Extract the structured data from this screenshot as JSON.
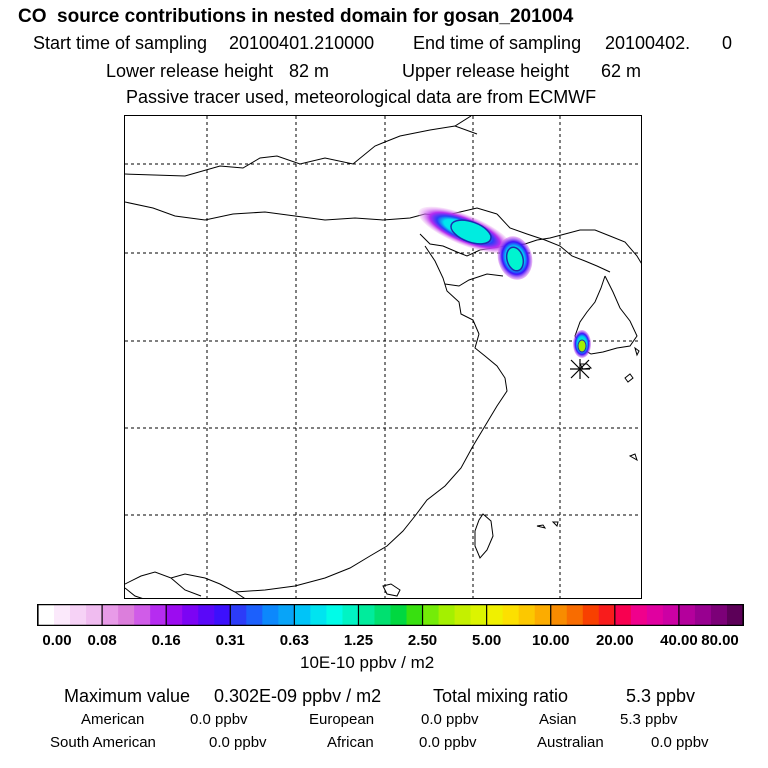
{
  "header": {
    "title": "CO  source contributions in nested domain for gosan_201004",
    "start_label": "Start time of sampling",
    "start_value": "20100401.210000",
    "end_label": "End time of sampling",
    "end_value": "20100402.",
    "end_suffix": "0",
    "lower_label": "Lower release height",
    "lower_value": "82 m",
    "upper_label": "Upper release height",
    "upper_value": "62 m",
    "note": "Passive tracer used, meteorological data are from ECMWF"
  },
  "colorbar": {
    "colors": [
      "#ffffff",
      "#fbe9fb",
      "#f6d2f6",
      "#f0bcf0",
      "#e89be8",
      "#dc7edc",
      "#d05ce8",
      "#b62cf0",
      "#9c0cf0",
      "#7c04f4",
      "#5a08f8",
      "#3c10fc",
      "#2c3cf8",
      "#1c60fc",
      "#0c88fc",
      "#08a4f8",
      "#00c4f8",
      "#00e4f0",
      "#00fce8",
      "#00f4c4",
      "#00ec9c",
      "#00e070",
      "#00d840",
      "#38e010",
      "#74ec08",
      "#a4f000",
      "#c4f000",
      "#dcf400",
      "#f0f000",
      "#fce000",
      "#fcc800",
      "#fcac00",
      "#f88c00",
      "#f86c00",
      "#f84000",
      "#f81c1c",
      "#f80050",
      "#f0008c",
      "#e000a0",
      "#cc00a4",
      "#b4009c",
      "#980090",
      "#7c0078",
      "#5c0058"
    ],
    "tick_labels": [
      "0.00",
      "0.08",
      "0.16",
      "0.31",
      "0.63",
      "1.25",
      "2.50",
      "5.00",
      "10.00",
      "20.00",
      "40.00",
      "80.00"
    ],
    "unit": "10E-10 ppbv / m2"
  },
  "summary": {
    "max_label": "Maximum value",
    "max_value": "0.302E-09 ppbv / m2",
    "total_label": "Total mixing ratio",
    "total_value": "5.3 ppbv"
  },
  "regions": [
    {
      "name": "American",
      "value": "0.0 ppbv"
    },
    {
      "name": "European",
      "value": "0.0 ppbv"
    },
    {
      "name": "Asian",
      "value": "5.3 ppbv"
    },
    {
      "name": "South American",
      "value": "0.0 ppbv"
    },
    {
      "name": "African",
      "value": "0.0 ppbv"
    },
    {
      "name": "Australian",
      "value": "0.0 ppbv"
    }
  ]
}
